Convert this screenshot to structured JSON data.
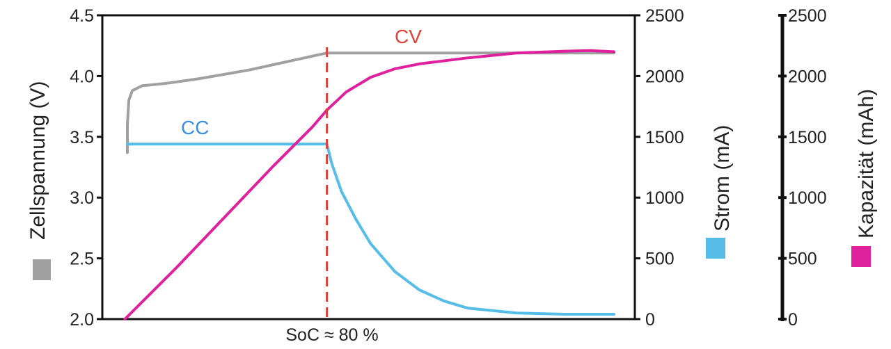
{
  "chart_data": {
    "type": "line",
    "x_marker_label": "SoC ≈ 80 %",
    "annotations": {
      "cc": "CC",
      "cv": "CV"
    },
    "axes": {
      "left": {
        "label": "Zellspannung (V)",
        "range": [
          2.0,
          4.5
        ],
        "ticks": [
          "2.0",
          "2.5",
          "3.0",
          "3.5",
          "4.0",
          "4.5"
        ]
      },
      "right1": {
        "label": "Strom (mA)",
        "range": [
          0,
          2500
        ],
        "ticks": [
          "0",
          "500",
          "1000",
          "1500",
          "2000",
          "2500"
        ]
      },
      "right2": {
        "label": "Kapazität (mAh)",
        "range": [
          0,
          2500
        ],
        "ticks": [
          "0",
          "500",
          "1000",
          "1500",
          "2000",
          "2500"
        ]
      }
    },
    "x_range": [
      0,
      1
    ],
    "cv_switch_x": 0.41,
    "series": [
      {
        "name": "Zellspannung",
        "axis": "left",
        "color": "#a0a0a0",
        "x": [
          0.0,
          0.0,
          0.003,
          0.01,
          0.03,
          0.08,
          0.15,
          0.25,
          0.33,
          0.41,
          0.41,
          0.6,
          0.8,
          1.0
        ],
        "y": [
          3.37,
          3.6,
          3.8,
          3.88,
          3.92,
          3.94,
          3.98,
          4.05,
          4.12,
          4.19,
          4.19,
          4.19,
          4.19,
          4.19
        ]
      },
      {
        "name": "Strom",
        "axis": "right1",
        "color": "#55bde8",
        "x": [
          0.0,
          0.41,
          0.42,
          0.44,
          0.47,
          0.5,
          0.55,
          0.6,
          0.65,
          0.7,
          0.8,
          0.9,
          1.0
        ],
        "y": [
          1440,
          1440,
          1280,
          1050,
          820,
          620,
          390,
          240,
          150,
          90,
          50,
          40,
          40
        ]
      },
      {
        "name": "Kapazität",
        "axis": "right2",
        "color": "#e0219e",
        "x": [
          -0.005,
          0.1,
          0.2,
          0.3,
          0.38,
          0.41,
          0.45,
          0.5,
          0.55,
          0.6,
          0.7,
          0.8,
          0.9,
          0.95,
          1.0
        ],
        "y": [
          0,
          420,
          840,
          1260,
          1580,
          1720,
          1870,
          1990,
          2060,
          2100,
          2150,
          2190,
          2205,
          2210,
          2200
        ]
      }
    ]
  },
  "legend_colors": {
    "voltage": "#a0a0a0",
    "current": "#55bde8",
    "capacity": "#e0219e"
  }
}
